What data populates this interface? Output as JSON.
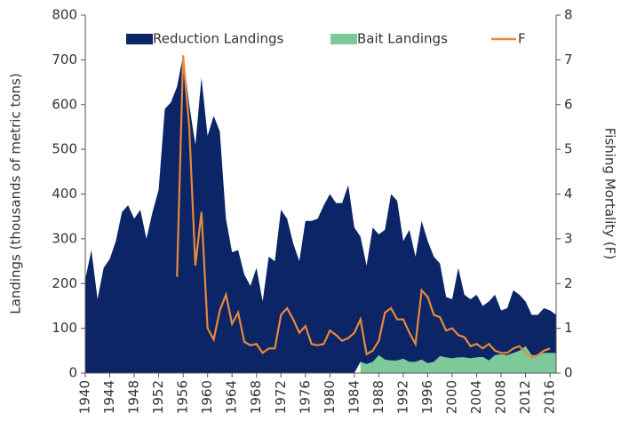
{
  "chart_data": {
    "type": "stacked-area-line",
    "ylabel": "Landings (thousands of metric tons)",
    "y2label": "Fishing Mortality (F)",
    "x": [
      1940,
      1941,
      1942,
      1943,
      1944,
      1945,
      1946,
      1947,
      1948,
      1949,
      1950,
      1951,
      1952,
      1953,
      1954,
      1955,
      1956,
      1957,
      1958,
      1959,
      1960,
      1961,
      1962,
      1963,
      1964,
      1965,
      1966,
      1967,
      1968,
      1969,
      1970,
      1971,
      1972,
      1973,
      1974,
      1975,
      1976,
      1977,
      1978,
      1979,
      1980,
      1981,
      1982,
      1983,
      1984,
      1985,
      1986,
      1987,
      1988,
      1989,
      1990,
      1991,
      1992,
      1993,
      1994,
      1995,
      1996,
      1997,
      1998,
      1999,
      2000,
      2001,
      2002,
      2003,
      2004,
      2005,
      2006,
      2007,
      2008,
      2009,
      2010,
      2011,
      2012,
      2013,
      2014,
      2015,
      2016,
      2017
    ],
    "series": [
      {
        "name": "Reduction Landings",
        "kind": "area",
        "color": "#0b2566",
        "values": [
          210,
          275,
          165,
          235,
          255,
          295,
          360,
          375,
          345,
          365,
          300,
          360,
          410,
          590,
          605,
          640,
          710,
          600,
          510,
          660,
          530,
          575,
          540,
          345,
          270,
          275,
          220,
          195,
          235,
          160,
          260,
          250,
          365,
          345,
          290,
          250,
          340,
          340,
          345,
          375,
          400,
          380,
          380,
          420,
          325,
          280,
          220,
          300,
          270,
          290,
          372,
          357,
          263,
          295,
          235,
          310,
          273,
          235,
          207,
          135,
          132,
          200,
          140,
          132,
          140,
          114,
          132,
          135,
          98,
          105,
          140,
          125,
          100,
          90,
          90,
          100,
          95,
          85
        ]
      },
      {
        "name": "Bait Landings",
        "kind": "area",
        "color": "#7ec99a",
        "values": [
          null,
          null,
          null,
          null,
          null,
          null,
          null,
          null,
          null,
          null,
          null,
          null,
          null,
          null,
          null,
          null,
          null,
          null,
          null,
          null,
          null,
          null,
          null,
          null,
          null,
          null,
          null,
          null,
          null,
          null,
          null,
          null,
          null,
          null,
          null,
          null,
          null,
          null,
          null,
          null,
          null,
          null,
          null,
          null,
          null,
          25,
          20,
          25,
          40,
          30,
          28,
          28,
          32,
          25,
          25,
          30,
          22,
          25,
          38,
          35,
          33,
          35,
          35,
          33,
          35,
          36,
          28,
          40,
          42,
          40,
          45,
          50,
          60,
          40,
          40,
          45,
          45,
          45
        ]
      },
      {
        "name": "F",
        "kind": "line",
        "axis": "y2",
        "color": "#e8893a",
        "values": [
          null,
          null,
          null,
          null,
          null,
          null,
          null,
          null,
          null,
          null,
          null,
          null,
          null,
          null,
          null,
          2.15,
          7.1,
          5.5,
          2.4,
          3.6,
          1.0,
          0.75,
          1.4,
          1.75,
          1.1,
          1.35,
          0.7,
          0.62,
          0.65,
          0.45,
          0.55,
          0.55,
          1.3,
          1.45,
          1.2,
          0.9,
          1.05,
          0.65,
          0.62,
          0.65,
          0.95,
          0.85,
          0.72,
          0.78,
          0.9,
          1.2,
          0.42,
          0.5,
          0.72,
          1.35,
          1.45,
          1.2,
          1.2,
          0.9,
          0.65,
          1.85,
          1.7,
          1.3,
          1.25,
          0.95,
          1.0,
          0.85,
          0.8,
          0.6,
          0.65,
          0.55,
          0.65,
          0.5,
          0.45,
          0.45,
          0.55,
          0.6,
          0.45,
          0.35,
          0.4,
          0.5,
          0.55,
          null
        ]
      }
    ],
    "xlim": [
      1940,
      2017
    ],
    "xticks": [
      1940,
      1944,
      1948,
      1952,
      1956,
      1960,
      1964,
      1968,
      1972,
      1976,
      1980,
      1984,
      1988,
      1992,
      1996,
      2000,
      2004,
      2008,
      2012,
      2016
    ],
    "ylim": [
      0,
      800
    ],
    "yticks": [
      0,
      100,
      200,
      300,
      400,
      500,
      600,
      700,
      800
    ],
    "y2lim": [
      0,
      8
    ],
    "y2ticks": [
      0,
      1,
      2,
      3,
      4,
      5,
      6,
      7,
      8
    ],
    "legend": "top"
  }
}
